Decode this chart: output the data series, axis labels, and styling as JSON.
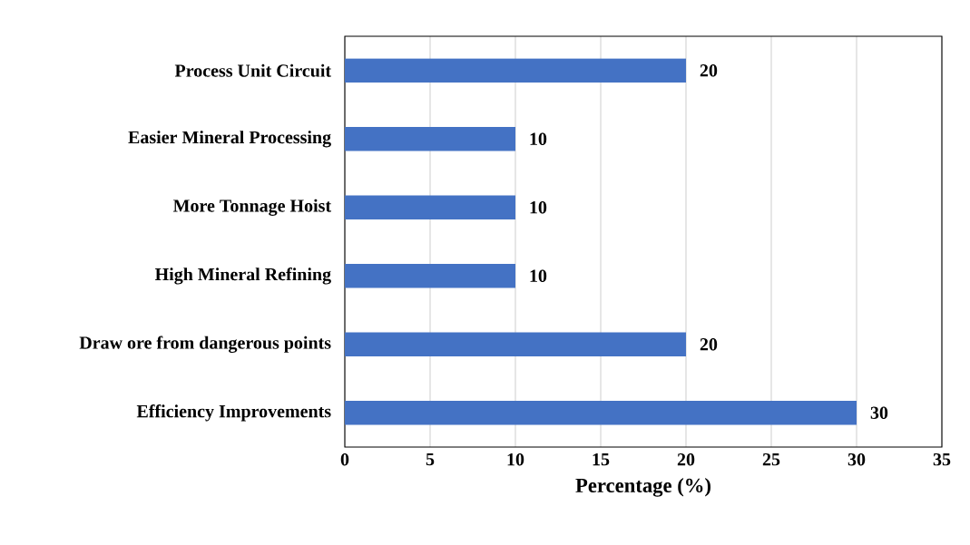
{
  "chart_data": {
    "type": "bar",
    "orientation": "horizontal",
    "xlabel": "Percentage (%)",
    "categories": [
      "Process Unit Circuit",
      "Easier Mineral Processing",
      "More Tonnage Hoist",
      "High Mineral Refining",
      "Draw ore from dangerous points",
      "Efficiency Improvements"
    ],
    "values": [
      20,
      10,
      10,
      10,
      20,
      30
    ],
    "color": "#4472c4",
    "xlim": [
      0,
      35
    ],
    "xticks": [
      0,
      5,
      10,
      15,
      20,
      25,
      30,
      35
    ],
    "grid": "x",
    "data_labels": true
  }
}
